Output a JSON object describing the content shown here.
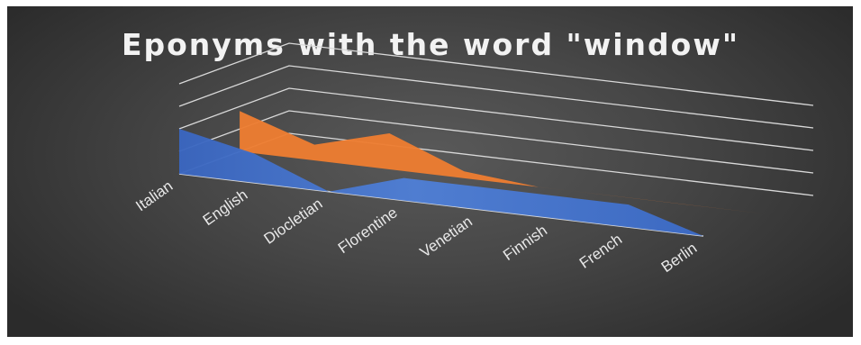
{
  "colors": {
    "background_center": "#595959",
    "background_edge": "#2b2b2b",
    "gridline": "#d9d9d9",
    "series_front": "#4472c4",
    "series_back": "#ed7d31",
    "title": "#f2f2f2",
    "labels": "#e8e8e8"
  },
  "chart_data": {
    "type": "area",
    "variant": "3d-area",
    "title": "Eponyms with the word \"window\"",
    "xlabel": "",
    "ylabel": "",
    "categories": [
      "Italian",
      "English",
      "Diocletian",
      "Florentine",
      "Venetian",
      "Finnish",
      "French",
      "Berlin"
    ],
    "ylim": [
      0,
      4
    ],
    "grid": true,
    "legend": "none",
    "series": [
      {
        "values": [
          2,
          1.3,
          0,
          1,
          1,
          1,
          1,
          0
        ]
      },
      {
        "values": [
          1.8,
          0.7,
          1.6,
          0.3,
          0,
          0,
          0,
          0
        ]
      }
    ]
  }
}
